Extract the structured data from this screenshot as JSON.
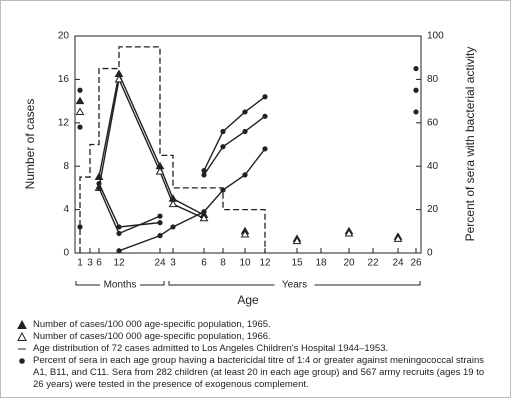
{
  "chart_data": {
    "type": "line",
    "x_label": "Age",
    "y_label": "Number of cases",
    "y2_label": "Percent of sera with bacterial activity",
    "categories": [
      "1",
      "3",
      "6",
      "12",
      "24",
      "3",
      "6",
      "8",
      "10",
      "12",
      "15",
      "18",
      "20",
      "22",
      "24",
      "26"
    ],
    "groups": [
      {
        "label": "Months",
        "from": 0,
        "to": 4
      },
      {
        "label": "Years",
        "from": 5,
        "to": 15
      }
    ],
    "ylim": [
      0,
      20
    ],
    "yticks": [
      0,
      4,
      8,
      12,
      16,
      20
    ],
    "y2lim": [
      0,
      100
    ],
    "y2ticks": [
      0,
      20,
      40,
      60,
      80,
      100
    ],
    "series": [
      {
        "name": "Number of cases/100 000 age-specific population, 1965.",
        "marker": "filled-triangle",
        "color": "#222",
        "values": [
          14,
          null,
          7,
          16.5,
          8,
          5,
          3.5,
          null,
          2,
          null,
          1.3,
          null,
          2,
          null,
          1.5,
          null
        ]
      },
      {
        "name": "Number of cases/100 000 age-specific population, 1966.",
        "marker": "open-triangle",
        "color": "#222",
        "values": [
          13,
          null,
          6,
          16,
          7.5,
          4.5,
          3.2,
          null,
          1.7,
          null,
          1.1,
          null,
          1.8,
          null,
          1.3,
          null
        ]
      },
      {
        "name": "Age distribution of 72 cases admitted to Los Angeles Children's Hospital 1944–1953.",
        "style": "step",
        "color": "#222",
        "values": [
          7,
          10,
          17,
          19,
          9,
          6,
          6,
          4,
          4,
          0,
          null,
          null,
          null,
          null,
          null,
          null
        ]
      },
      {
        "name": "Percent of sera in each age group having a bactericidal titre of 1:4 or greater against meningococcal strains A1, B11, and C11. Sera from 282 children (at least 20 in each age group) and 567 army recruits (ages 19 to 26 years) were tested in the presence of exogenous complement.",
        "marker": "filled-circle",
        "axis": "y2",
        "color": "#222",
        "lines": [
          [
            75,
            null,
            30,
            9,
            17,
            null,
            38,
            56,
            65,
            72,
            null,
            null,
            null,
            null,
            null,
            85
          ],
          [
            58,
            null,
            32,
            12,
            14,
            null,
            36,
            49,
            56,
            63,
            null,
            null,
            null,
            null,
            null,
            75
          ],
          [
            12,
            null,
            null,
            1,
            8,
            12,
            19,
            29,
            36,
            48,
            null,
            null,
            null,
            null,
            null,
            65
          ]
        ]
      }
    ]
  }
}
